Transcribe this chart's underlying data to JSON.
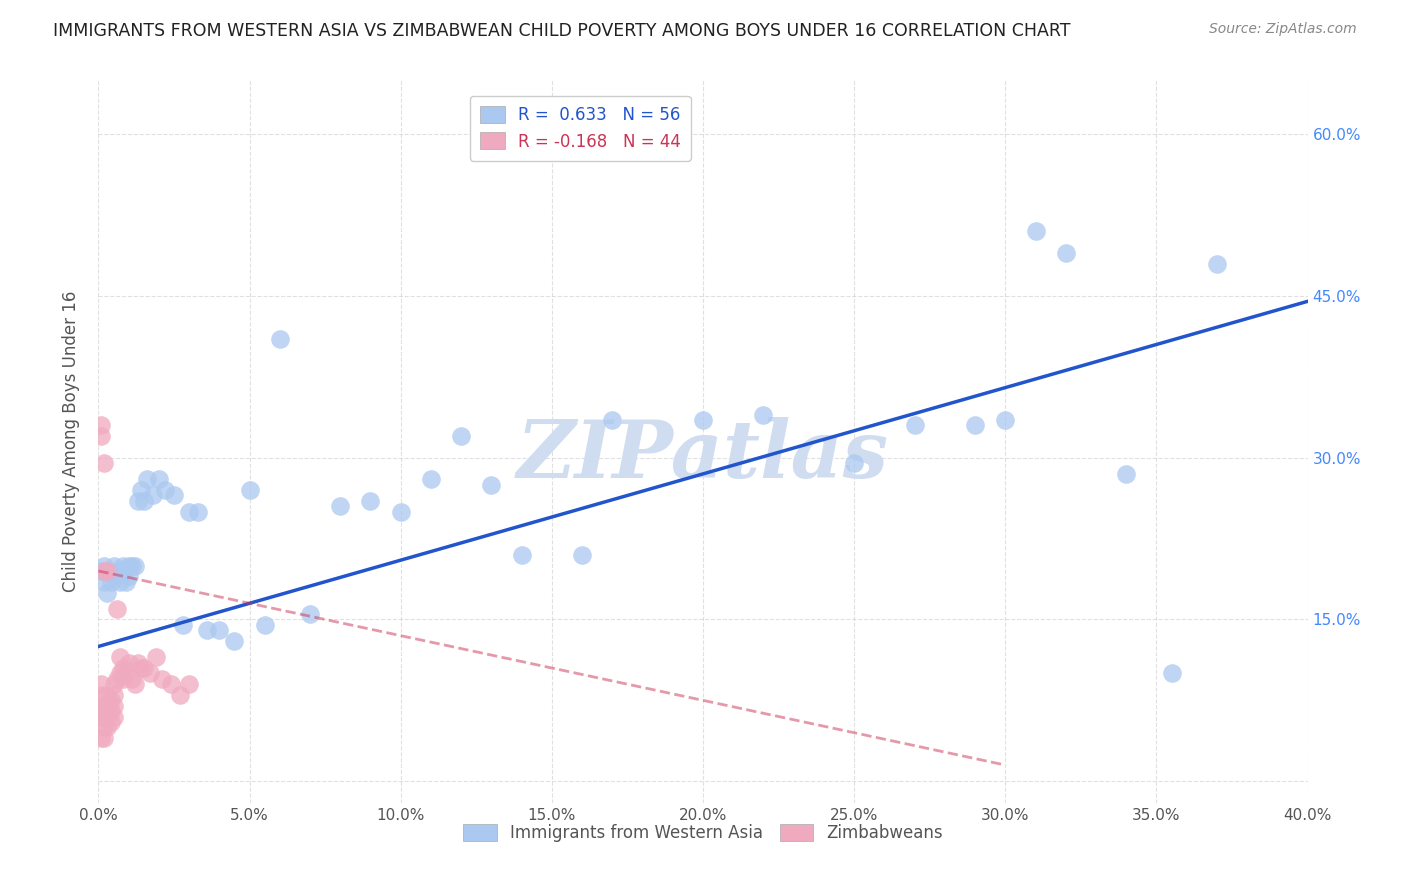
{
  "title": "IMMIGRANTS FROM WESTERN ASIA VS ZIMBABWEAN CHILD POVERTY AMONG BOYS UNDER 16 CORRELATION CHART",
  "source": "Source: ZipAtlas.com",
  "ylabel": "Child Poverty Among Boys Under 16",
  "xlim": [
    0,
    0.4
  ],
  "ylim": [
    -0.02,
    0.65
  ],
  "blue_R": 0.633,
  "blue_N": 56,
  "pink_R": -0.168,
  "pink_N": 44,
  "blue_color": "#aac8f0",
  "pink_color": "#f0aac0",
  "blue_line_color": "#2255cc",
  "pink_line_color": "#cc3355",
  "watermark": "ZIPatlas",
  "watermark_color": "#d0ddf0",
  "legend_blue_label": "Immigrants from Western Asia",
  "legend_pink_label": "Zimbabweans",
  "blue_line_intercept": 0.125,
  "blue_line_slope": 0.8,
  "pink_line_intercept": 0.195,
  "pink_line_slope": -0.6,
  "blue_scatter_x": [
    0.001,
    0.002,
    0.002,
    0.003,
    0.003,
    0.004,
    0.005,
    0.005,
    0.006,
    0.007,
    0.007,
    0.008,
    0.008,
    0.009,
    0.01,
    0.01,
    0.011,
    0.012,
    0.013,
    0.014,
    0.015,
    0.016,
    0.018,
    0.02,
    0.022,
    0.025,
    0.028,
    0.03,
    0.033,
    0.036,
    0.04,
    0.045,
    0.05,
    0.055,
    0.06,
    0.07,
    0.08,
    0.09,
    0.1,
    0.11,
    0.12,
    0.13,
    0.14,
    0.16,
    0.17,
    0.2,
    0.22,
    0.25,
    0.27,
    0.29,
    0.3,
    0.31,
    0.32,
    0.34,
    0.355,
    0.37
  ],
  "blue_scatter_y": [
    0.195,
    0.185,
    0.2,
    0.175,
    0.195,
    0.185,
    0.19,
    0.2,
    0.195,
    0.185,
    0.195,
    0.2,
    0.195,
    0.185,
    0.2,
    0.19,
    0.2,
    0.2,
    0.26,
    0.27,
    0.26,
    0.28,
    0.265,
    0.28,
    0.27,
    0.265,
    0.145,
    0.25,
    0.25,
    0.14,
    0.14,
    0.13,
    0.27,
    0.145,
    0.41,
    0.155,
    0.255,
    0.26,
    0.25,
    0.28,
    0.32,
    0.275,
    0.21,
    0.21,
    0.335,
    0.335,
    0.34,
    0.295,
    0.33,
    0.33,
    0.335,
    0.51,
    0.49,
    0.285,
    0.1,
    0.48
  ],
  "pink_scatter_x": [
    0.001,
    0.001,
    0.001,
    0.001,
    0.001,
    0.002,
    0.002,
    0.002,
    0.002,
    0.003,
    0.003,
    0.003,
    0.003,
    0.004,
    0.004,
    0.004,
    0.005,
    0.005,
    0.005,
    0.005,
    0.006,
    0.006,
    0.007,
    0.007,
    0.008,
    0.008,
    0.009,
    0.01,
    0.011,
    0.012,
    0.013,
    0.014,
    0.015,
    0.017,
    0.019,
    0.021,
    0.024,
    0.027,
    0.03,
    0.003,
    0.002,
    0.001,
    0.002,
    0.001
  ],
  "pink_scatter_y": [
    0.04,
    0.06,
    0.07,
    0.08,
    0.09,
    0.04,
    0.05,
    0.06,
    0.07,
    0.05,
    0.06,
    0.07,
    0.08,
    0.055,
    0.065,
    0.075,
    0.06,
    0.07,
    0.08,
    0.09,
    0.095,
    0.16,
    0.1,
    0.115,
    0.095,
    0.105,
    0.1,
    0.11,
    0.095,
    0.09,
    0.11,
    0.105,
    0.105,
    0.1,
    0.115,
    0.095,
    0.09,
    0.08,
    0.09,
    0.195,
    0.295,
    0.32,
    0.195,
    0.33
  ]
}
